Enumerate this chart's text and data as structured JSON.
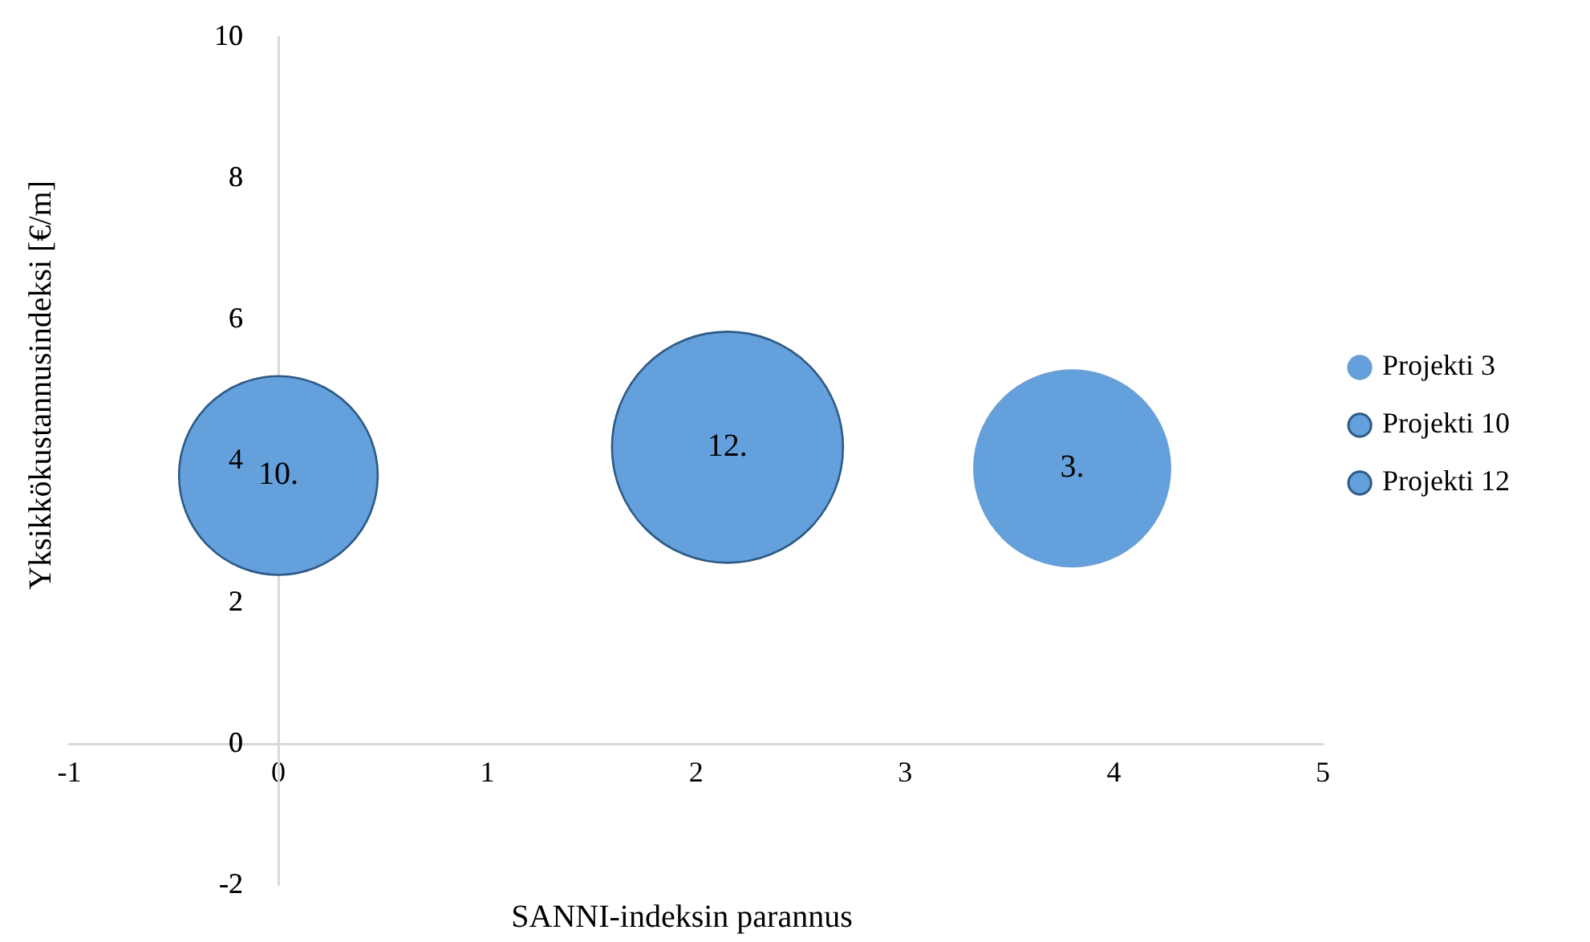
{
  "chart_data": {
    "type": "bubble",
    "xlabel": "SANNI-indeksin parannus",
    "ylabel": "Yksikkökustannusindeksi [€/m]",
    "xlim": [
      -1,
      5
    ],
    "xticks": [
      -1,
      0,
      1,
      2,
      3,
      4,
      5
    ],
    "ylim": [
      -2,
      10
    ],
    "yticks": [
      -2,
      0,
      2,
      4,
      6,
      8,
      10
    ],
    "grid": false,
    "legend": "right",
    "series": [
      {
        "name": "Projekti 3",
        "color": "#63a0dc",
        "x": [
          3.8
        ],
        "values": [
          3.9
        ],
        "sizes": [
          0.72
        ]
      },
      {
        "name": "Projekti 10",
        "color": "#63a0dc",
        "x": [
          0
        ],
        "values": [
          3.8
        ],
        "sizes": [
          0.74
        ]
      },
      {
        "name": "Projekti 12",
        "color": "#63a0dc",
        "x": [
          2.15
        ],
        "values": [
          4.2
        ],
        "sizes": [
          1
        ]
      }
    ],
    "annotations": [
      {
        "text": "3.",
        "x": 3.8,
        "y": 3.9
      },
      {
        "text": "10.",
        "x": 0,
        "y": 3.8
      },
      {
        "text": "12.",
        "x": 2.15,
        "y": 4.2
      }
    ]
  }
}
